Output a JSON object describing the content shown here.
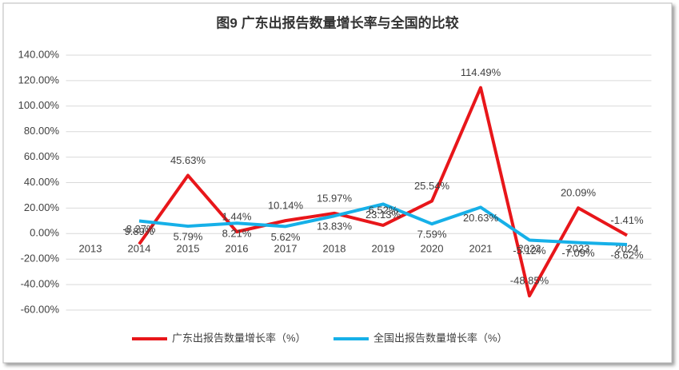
{
  "chart_data": {
    "type": "line",
    "title": "图9  广东出报告数量增长率与全国的比较",
    "categories": [
      "2013",
      "2014",
      "2015",
      "2016",
      "2017",
      "2018",
      "2019",
      "2020",
      "2021",
      "2022",
      "2023",
      "2024"
    ],
    "series": [
      {
        "name": "广东出报告数量增长率（%）",
        "color": "#e8161a",
        "values": [
          null,
          -8.27,
          45.63,
          1.44,
          10.14,
          15.97,
          6.52,
          25.54,
          114.49,
          -48.85,
          20.09,
          -1.41
        ],
        "value_labels": [
          null,
          "-8.27%",
          "45.63%",
          "1.44%",
          "10.14%",
          "15.97%",
          "6.52%",
          "25.54%",
          "114.49%",
          "-48.85%",
          "20.09%",
          "-1.41%"
        ]
      },
      {
        "name": "全国出报告数量增长率（%）",
        "color": "#16b0e8",
        "values": [
          null,
          9.89,
          5.79,
          8.21,
          5.62,
          13.83,
          23.13,
          7.59,
          20.63,
          -5.12,
          -7.09,
          -8.62
        ],
        "value_labels": [
          null,
          "9.89%",
          "5.79%",
          "8.21%",
          "5.62%",
          "13.83%",
          "23.13%",
          "7.59%",
          "20.63%",
          "-5.12%",
          "-7.09%",
          "-8.62%"
        ]
      }
    ],
    "ylim": [
      -60,
      140
    ],
    "yticks": [
      {
        "value": -60,
        "label": "-60.00%"
      },
      {
        "value": -40,
        "label": "-40.00%"
      },
      {
        "value": -20,
        "label": "-20.00%"
      },
      {
        "value": 0,
        "label": "0.00%"
      },
      {
        "value": 20,
        "label": "20.00%"
      },
      {
        "value": 40,
        "label": "40.00%"
      },
      {
        "value": 60,
        "label": "60.00%"
      },
      {
        "value": 80,
        "label": "80.00%"
      },
      {
        "value": 100,
        "label": "100.00%"
      },
      {
        "value": 120,
        "label": "120.00%"
      },
      {
        "value": 140,
        "label": "140.00%"
      }
    ],
    "grid": true,
    "legend": "bottom"
  }
}
